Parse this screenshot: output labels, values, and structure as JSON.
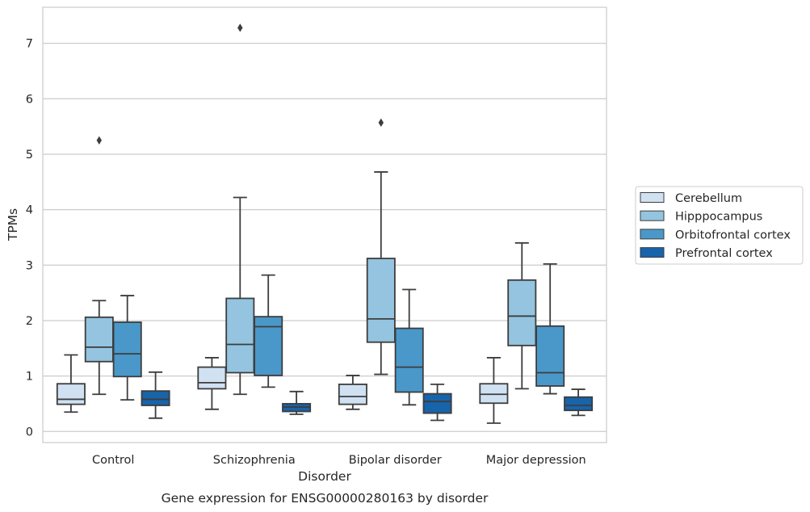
{
  "chart_data": {
    "type": "box",
    "caption": "Gene expression for ENSG00000280163 by disorder",
    "xlabel": "Disorder",
    "ylabel": "TPMs",
    "ylim": [
      -0.2,
      7.65
    ],
    "yticks": [
      0,
      1,
      2,
      3,
      4,
      5,
      6,
      7
    ],
    "grid": "y",
    "legend_position": "right",
    "categories": [
      "Control",
      "Schizophrenia",
      "Bipolar disorder",
      "Major depression"
    ],
    "series": [
      {
        "name": "Cerebellum",
        "color": "#d0e1f2",
        "boxes": [
          {
            "whislo": 0.35,
            "q1": 0.49,
            "med": 0.58,
            "q3": 0.86,
            "whishi": 1.38,
            "fliers": []
          },
          {
            "whislo": 0.4,
            "q1": 0.77,
            "med": 0.88,
            "q3": 1.16,
            "whishi": 1.33,
            "fliers": []
          },
          {
            "whislo": 0.4,
            "q1": 0.49,
            "med": 0.63,
            "q3": 0.85,
            "whishi": 1.01,
            "fliers": []
          },
          {
            "whislo": 0.15,
            "q1": 0.51,
            "med": 0.67,
            "q3": 0.86,
            "whishi": 1.33,
            "fliers": []
          }
        ]
      },
      {
        "name": "Hipppocampus",
        "color": "#94c4df",
        "boxes": [
          {
            "whislo": 0.67,
            "q1": 1.26,
            "med": 1.52,
            "q3": 2.06,
            "whishi": 2.36,
            "fliers": [
              5.25
            ]
          },
          {
            "whislo": 0.67,
            "q1": 1.06,
            "med": 1.57,
            "q3": 2.4,
            "whishi": 4.22,
            "fliers": [
              7.28
            ]
          },
          {
            "whislo": 1.03,
            "q1": 1.61,
            "med": 2.03,
            "q3": 3.12,
            "whishi": 4.68,
            "fliers": [
              5.57
            ]
          },
          {
            "whislo": 0.77,
            "q1": 1.55,
            "med": 2.08,
            "q3": 2.73,
            "whishi": 3.4,
            "fliers": []
          }
        ]
      },
      {
        "name": "Orbitofrontal cortex",
        "color": "#4a98c9",
        "boxes": [
          {
            "whislo": 0.57,
            "q1": 0.99,
            "med": 1.4,
            "q3": 1.97,
            "whishi": 2.45,
            "fliers": []
          },
          {
            "whislo": 0.8,
            "q1": 1.01,
            "med": 1.89,
            "q3": 2.07,
            "whishi": 2.82,
            "fliers": []
          },
          {
            "whislo": 0.48,
            "q1": 0.71,
            "med": 1.16,
            "q3": 1.86,
            "whishi": 2.56,
            "fliers": []
          },
          {
            "whislo": 0.68,
            "q1": 0.82,
            "med": 1.06,
            "q3": 1.9,
            "whishi": 3.02,
            "fliers": []
          }
        ]
      },
      {
        "name": "Prefrontal cortex",
        "color": "#1764ab",
        "boxes": [
          {
            "whislo": 0.24,
            "q1": 0.47,
            "med": 0.58,
            "q3": 0.73,
            "whishi": 1.07,
            "fliers": []
          },
          {
            "whislo": 0.31,
            "q1": 0.36,
            "med": 0.44,
            "q3": 0.5,
            "whishi": 0.72,
            "fliers": []
          },
          {
            "whislo": 0.2,
            "q1": 0.33,
            "med": 0.54,
            "q3": 0.68,
            "whishi": 0.85,
            "fliers": []
          },
          {
            "whislo": 0.29,
            "q1": 0.38,
            "med": 0.47,
            "q3": 0.62,
            "whishi": 0.76,
            "fliers": []
          }
        ]
      }
    ]
  }
}
